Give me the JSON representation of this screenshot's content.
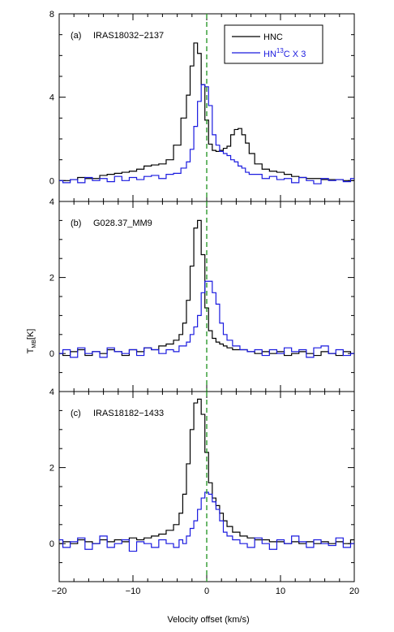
{
  "chart_data": {
    "type": "line",
    "xlabel": "Velocity offset (km/s)",
    "ylabel_main": "T",
    "ylabel_sub": "MB",
    "ylabel_unit": "[K]",
    "xlim": [
      -20,
      20
    ],
    "x_ticks": [
      -20,
      -10,
      0,
      10,
      20
    ],
    "x_tick_labels": [
      "−20",
      "−10",
      "0",
      "10",
      "20"
    ],
    "reference_line_x": 0,
    "legend": {
      "placement": "top-right",
      "entries": [
        {
          "label": "HNC",
          "color": "#000000"
        },
        {
          "label_main": "HN",
          "label_sup": "13",
          "label_rest": "C X 3",
          "color": "#1a1adf"
        }
      ]
    },
    "colors": {
      "hnc": "#000000",
      "hn13c": "#1a1adf",
      "zero_line": "#2e9a2e"
    },
    "panels": [
      {
        "label": "(a)",
        "source": "IRAS18032−2137",
        "ylim": [
          -1,
          8
        ],
        "y_ticks": [
          0,
          4,
          8
        ],
        "y_tick_labels": [
          "0",
          "4",
          "8"
        ],
        "series": [
          {
            "name": "HNC",
            "x": [
              -20,
              -19,
              -18,
              -17,
              -16,
              -15,
              -14,
              -13,
              -12,
              -11,
              -10,
              -9,
              -8,
              -7,
              -6,
              -5,
              -4,
              -3,
              -2.5,
              -2,
              -1.5,
              -1,
              -0.5,
              0,
              0.5,
              1,
              1.5,
              2,
              2.5,
              3,
              3.5,
              4,
              4.5,
              5,
              5.5,
              6,
              7,
              8,
              9,
              10,
              11,
              12,
              13,
              14,
              15,
              16,
              17,
              18,
              19,
              20
            ],
            "y": [
              0.0,
              0.0,
              0.05,
              0.15,
              0.1,
              0.1,
              0.25,
              0.3,
              0.35,
              0.4,
              0.45,
              0.55,
              0.7,
              0.75,
              0.8,
              1.0,
              1.7,
              3.0,
              4.1,
              5.5,
              6.6,
              6.1,
              4.6,
              2.9,
              1.75,
              1.45,
              1.4,
              1.45,
              1.55,
              1.65,
              2.2,
              2.45,
              2.5,
              2.2,
              1.8,
              1.3,
              0.8,
              0.55,
              0.45,
              0.4,
              0.3,
              0.2,
              0.15,
              0.1,
              0.1,
              0.05,
              0.05,
              0.05,
              0.0,
              0.0
            ]
          },
          {
            "name": "HN13C X 3",
            "x": [
              -20,
              -19,
              -18,
              -17,
              -16,
              -15,
              -14,
              -13,
              -12,
              -11,
              -10,
              -9,
              -8,
              -7,
              -6,
              -5,
              -4,
              -3,
              -2.5,
              -2,
              -1.5,
              -1,
              -0.5,
              0,
              0.5,
              1,
              1.5,
              2,
              2.5,
              3,
              3.5,
              4,
              4.5,
              5,
              5.5,
              6,
              7,
              8,
              9,
              10,
              11,
              12,
              13,
              14,
              15,
              16,
              17,
              18,
              19,
              20
            ],
            "y": [
              0.0,
              -0.1,
              0.05,
              -0.1,
              0.15,
              0.0,
              0.1,
              -0.05,
              0.2,
              0.0,
              0.15,
              0.05,
              0.2,
              0.25,
              0.1,
              0.3,
              0.35,
              0.6,
              0.9,
              1.5,
              2.6,
              3.8,
              4.6,
              4.5,
              3.6,
              2.2,
              1.7,
              1.4,
              1.3,
              1.2,
              1.0,
              0.9,
              0.7,
              0.6,
              0.4,
              0.3,
              0.3,
              0.1,
              0.2,
              0.05,
              0.1,
              -0.1,
              0.15,
              0.0,
              -0.15,
              0.1,
              0.0,
              0.05,
              -0.05,
              0.1
            ]
          }
        ]
      },
      {
        "label": "(b)",
        "source": "G028.37_MM9",
        "ylim": [
          -1,
          4
        ],
        "y_ticks": [
          0,
          2,
          4
        ],
        "y_tick_labels": [
          "0",
          "2",
          "4"
        ],
        "series": [
          {
            "name": "HNC",
            "x": [
              -20,
              -19,
              -18,
              -17,
              -16,
              -15,
              -14,
              -13,
              -12,
              -11,
              -10,
              -9,
              -8,
              -7,
              -6,
              -5,
              -4,
              -3.5,
              -3,
              -2.5,
              -2,
              -1.5,
              -1,
              -0.5,
              0,
              0.5,
              1,
              1.5,
              2,
              2.5,
              3,
              4,
              5,
              6,
              7,
              8,
              9,
              10,
              11,
              12,
              13,
              14,
              15,
              16,
              17,
              18,
              19,
              20
            ],
            "y": [
              0.0,
              -0.05,
              0.05,
              0.1,
              -0.05,
              0.05,
              0.0,
              0.1,
              0.05,
              -0.05,
              0.1,
              0.05,
              0.15,
              0.1,
              0.2,
              0.25,
              0.35,
              0.5,
              0.8,
              1.4,
              2.3,
              3.3,
              3.5,
              2.6,
              1.2,
              0.6,
              0.4,
              0.3,
              0.25,
              0.2,
              0.15,
              0.1,
              0.1,
              0.05,
              0.0,
              0.05,
              0.0,
              0.05,
              -0.05,
              0.0,
              0.05,
              0.0,
              -0.05,
              0.05,
              0.0,
              -0.05,
              0.05,
              0.0
            ]
          },
          {
            "name": "HN13C X 3",
            "x": [
              -20,
              -19,
              -18,
              -17,
              -16,
              -15,
              -14,
              -13,
              -12,
              -11,
              -10,
              -9,
              -8,
              -7,
              -6,
              -5,
              -4,
              -3.5,
              -3,
              -2.5,
              -2,
              -1.5,
              -1,
              -0.5,
              0,
              0.5,
              1,
              1.5,
              2,
              2.5,
              3,
              4,
              5,
              6,
              7,
              8,
              9,
              10,
              11,
              12,
              13,
              14,
              15,
              16,
              17,
              18,
              19,
              20
            ],
            "y": [
              0.0,
              0.1,
              -0.1,
              0.15,
              0.0,
              0.05,
              -0.1,
              0.15,
              0.05,
              0.0,
              0.1,
              -0.05,
              0.15,
              0.1,
              0.0,
              0.1,
              0.05,
              0.2,
              0.2,
              0.3,
              0.5,
              0.7,
              1.0,
              1.6,
              1.9,
              1.9,
              1.6,
              1.3,
              0.8,
              0.5,
              0.35,
              0.2,
              0.1,
              0.05,
              0.1,
              -0.05,
              0.1,
              0.0,
              0.15,
              0.05,
              0.1,
              -0.1,
              0.15,
              0.2,
              0.0,
              0.1,
              -0.05,
              0.0
            ]
          }
        ]
      },
      {
        "label": "(c)",
        "source": "IRAS18182−1433",
        "ylim": [
          -1,
          4
        ],
        "y_ticks": [
          0,
          2,
          4
        ],
        "y_tick_labels": [
          "0",
          "2",
          "4"
        ],
        "series": [
          {
            "name": "HNC",
            "x": [
              -20,
              -19,
              -18,
              -17,
              -16,
              -15,
              -14,
              -13,
              -12,
              -11,
              -10,
              -9,
              -8,
              -7,
              -6,
              -5,
              -4,
              -3.5,
              -3,
              -2.5,
              -2,
              -1.5,
              -1,
              -0.5,
              0,
              0.5,
              1,
              1.5,
              2,
              2.5,
              3,
              4,
              5,
              6,
              7,
              8,
              9,
              10,
              11,
              12,
              13,
              14,
              15,
              16,
              17,
              18,
              19,
              20
            ],
            "y": [
              0.0,
              0.05,
              0.0,
              0.1,
              0.05,
              0.0,
              0.1,
              0.05,
              0.1,
              0.05,
              0.15,
              0.1,
              0.15,
              0.2,
              0.25,
              0.35,
              0.5,
              0.8,
              1.3,
              2.1,
              3.0,
              3.7,
              3.8,
              3.4,
              2.4,
              1.6,
              1.2,
              1.0,
              0.8,
              0.6,
              0.45,
              0.3,
              0.2,
              0.15,
              0.1,
              0.1,
              0.05,
              0.05,
              0.0,
              0.05,
              0.0,
              0.05,
              0.0,
              0.05,
              0.0,
              0.05,
              0.0,
              0.1
            ]
          },
          {
            "name": "HN13C X 3",
            "x": [
              -20,
              -19,
              -18,
              -17,
              -16,
              -15,
              -14,
              -13,
              -12,
              -11,
              -10,
              -9,
              -8,
              -7,
              -6,
              -5,
              -4,
              -3.5,
              -3,
              -2.5,
              -2,
              -1.5,
              -1,
              -0.5,
              0,
              0.5,
              1,
              1.5,
              2,
              2.5,
              3,
              4,
              5,
              6,
              7,
              8,
              9,
              10,
              11,
              12,
              13,
              14,
              15,
              16,
              17,
              18,
              19,
              20
            ],
            "y": [
              0.1,
              -0.1,
              0.05,
              0.15,
              -0.15,
              0.0,
              0.2,
              -0.1,
              0.0,
              0.1,
              -0.2,
              0.05,
              0.0,
              -0.1,
              0.1,
              0.0,
              -0.1,
              0.1,
              0.0,
              0.2,
              0.4,
              0.6,
              0.9,
              1.2,
              1.35,
              1.3,
              1.1,
              0.9,
              0.6,
              0.3,
              0.2,
              0.1,
              0.0,
              -0.1,
              0.15,
              0.0,
              -0.15,
              0.1,
              0.0,
              0.2,
              0.05,
              -0.1,
              0.1,
              0.0,
              -0.05,
              0.15,
              -0.1,
              0.0
            ]
          }
        ]
      }
    ]
  }
}
